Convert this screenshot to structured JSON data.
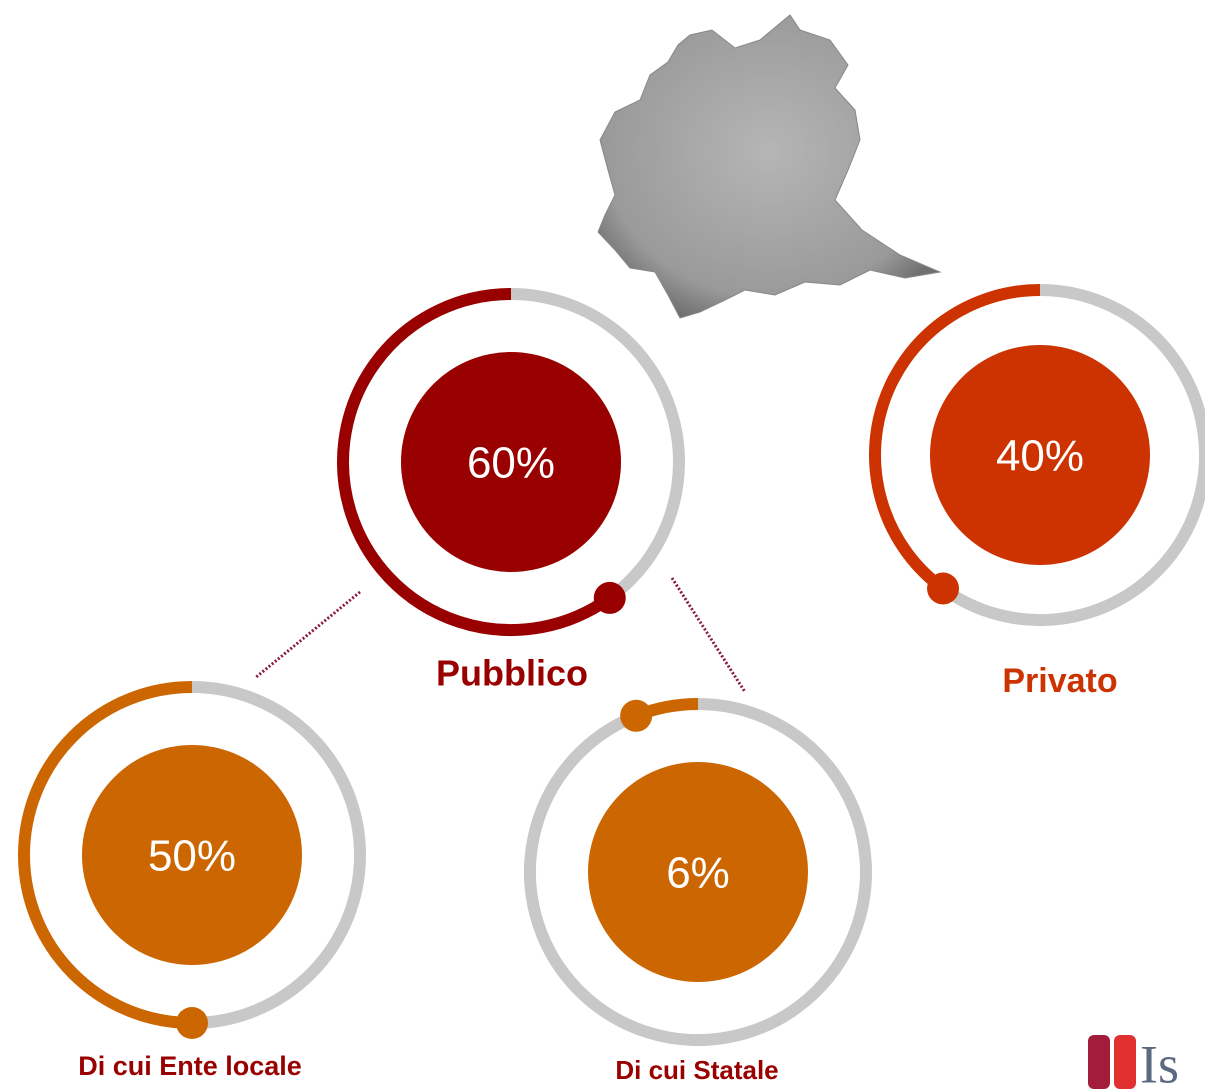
{
  "chart_data": [
    {
      "type": "gauge",
      "title": "Pubblico",
      "values": [
        60
      ],
      "value_labels": [
        "60%"
      ],
      "color": "#990000",
      "ylim": [
        0,
        100
      ]
    },
    {
      "type": "gauge",
      "title": "Privato",
      "values": [
        40
      ],
      "value_labels": [
        "40%"
      ],
      "color": "#cc3300",
      "ylim": [
        0,
        100
      ]
    },
    {
      "type": "gauge",
      "title": "Di cui Ente locale",
      "values": [
        50
      ],
      "value_labels": [
        "50%"
      ],
      "color": "#cc6600",
      "ylim": [
        0,
        100
      ]
    },
    {
      "type": "gauge",
      "title": "Di cui Statale",
      "values": [
        6
      ],
      "value_labels": [
        "6%"
      ],
      "color": "#cc6600",
      "ylim": [
        0,
        100
      ]
    }
  ],
  "logo": {
    "text": "Is"
  }
}
